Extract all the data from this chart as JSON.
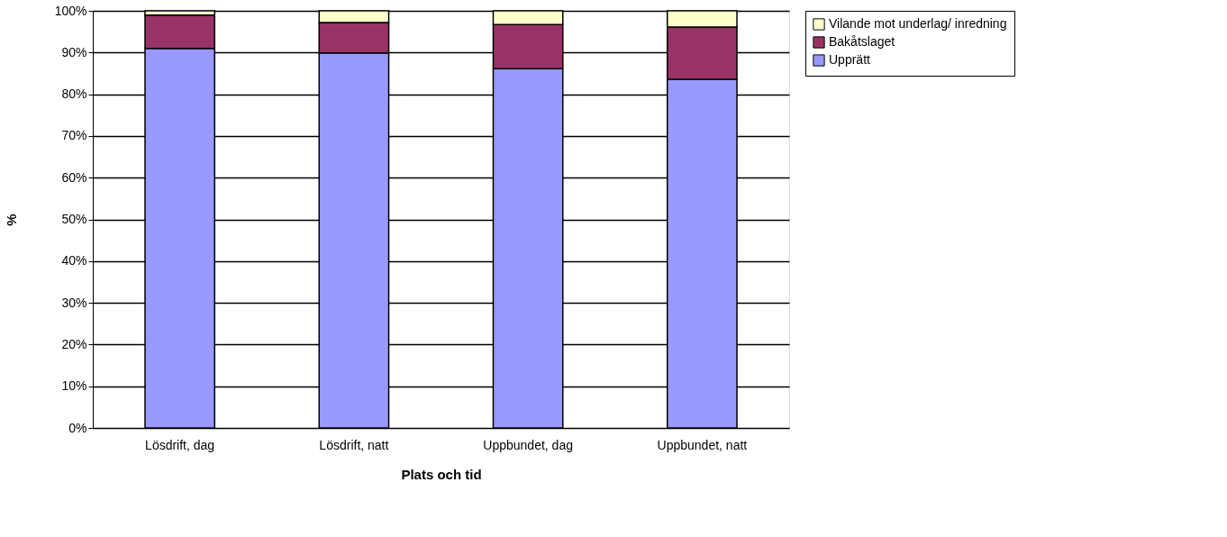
{
  "chart_data": {
    "type": "bar",
    "stacked": true,
    "xlabel": "Plats och tid",
    "ylabel": "%",
    "categories": [
      "Lösdrift, dag",
      "Lösdrift, natt",
      "Uppbundet, dag",
      "Uppbundet, natt"
    ],
    "series": [
      {
        "name": "Upprätt",
        "color": "#9999ff",
        "values": [
          91.0,
          89.9,
          86.1,
          83.6
        ]
      },
      {
        "name": "Bakåtslaget",
        "color": "#993366",
        "values": [
          8.0,
          7.3,
          10.6,
          12.5
        ]
      },
      {
        "name": "Vilande mot underlag/ inredning",
        "color": "#ffffcc",
        "values": [
          1.0,
          2.8,
          3.3,
          3.9
        ]
      }
    ],
    "ylim": [
      0,
      100
    ],
    "yticks": [
      {
        "value": 0,
        "label": "0%"
      },
      {
        "value": 10,
        "label": "10%"
      },
      {
        "value": 20,
        "label": "20%"
      },
      {
        "value": 30,
        "label": "30%"
      },
      {
        "value": 40,
        "label": "40%"
      },
      {
        "value": 50,
        "label": "50%"
      },
      {
        "value": 60,
        "label": "60%"
      },
      {
        "value": 70,
        "label": "70%"
      },
      {
        "value": 80,
        "label": "80%"
      },
      {
        "value": 90,
        "label": "90%"
      },
      {
        "value": 100,
        "label": "100%"
      }
    ],
    "grid": "y",
    "legend": "right"
  }
}
